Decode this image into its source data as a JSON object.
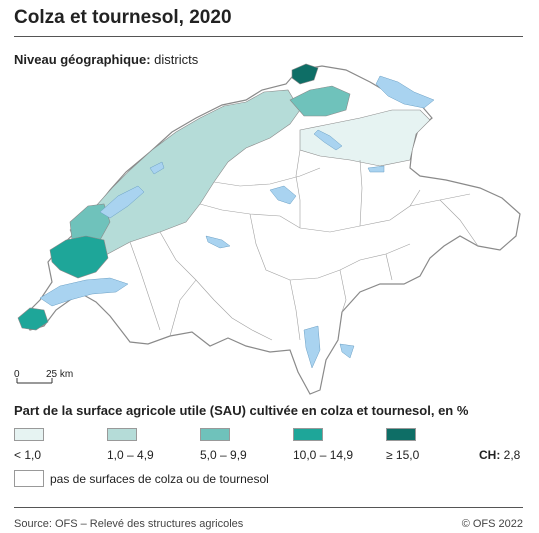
{
  "title": "Colza et tournesol, 2020",
  "level": {
    "label": "Niveau géographique:",
    "value": " districts"
  },
  "scale": {
    "start": "0",
    "end": "25 km"
  },
  "legend": {
    "title": "Part de la surface agricole utile (SAU) cultivée en colza et tournesol, en %",
    "classes": [
      {
        "label": "< 1,0",
        "color": "#e6f3f2"
      },
      {
        "label": "1,0 – 4,9",
        "color": "#b5dcd8"
      },
      {
        "label": "5,0 – 9,9",
        "color": "#6fc2bb"
      },
      {
        "label": "10,0 – 14,9",
        "color": "#1ea699"
      },
      {
        "label": "≥ 15,0",
        "color": "#0e6e66"
      }
    ],
    "ch_label": "CH:",
    "ch_value": " 2,8",
    "nodata": "pas de surfaces de colza ou de tournesol"
  },
  "footer": {
    "source": "Source: OFS – Relevé des structures agricoles",
    "copyright": "© OFS 2022"
  },
  "colors": {
    "lake": "#a9d3f0",
    "border": "#8a8a8a"
  }
}
